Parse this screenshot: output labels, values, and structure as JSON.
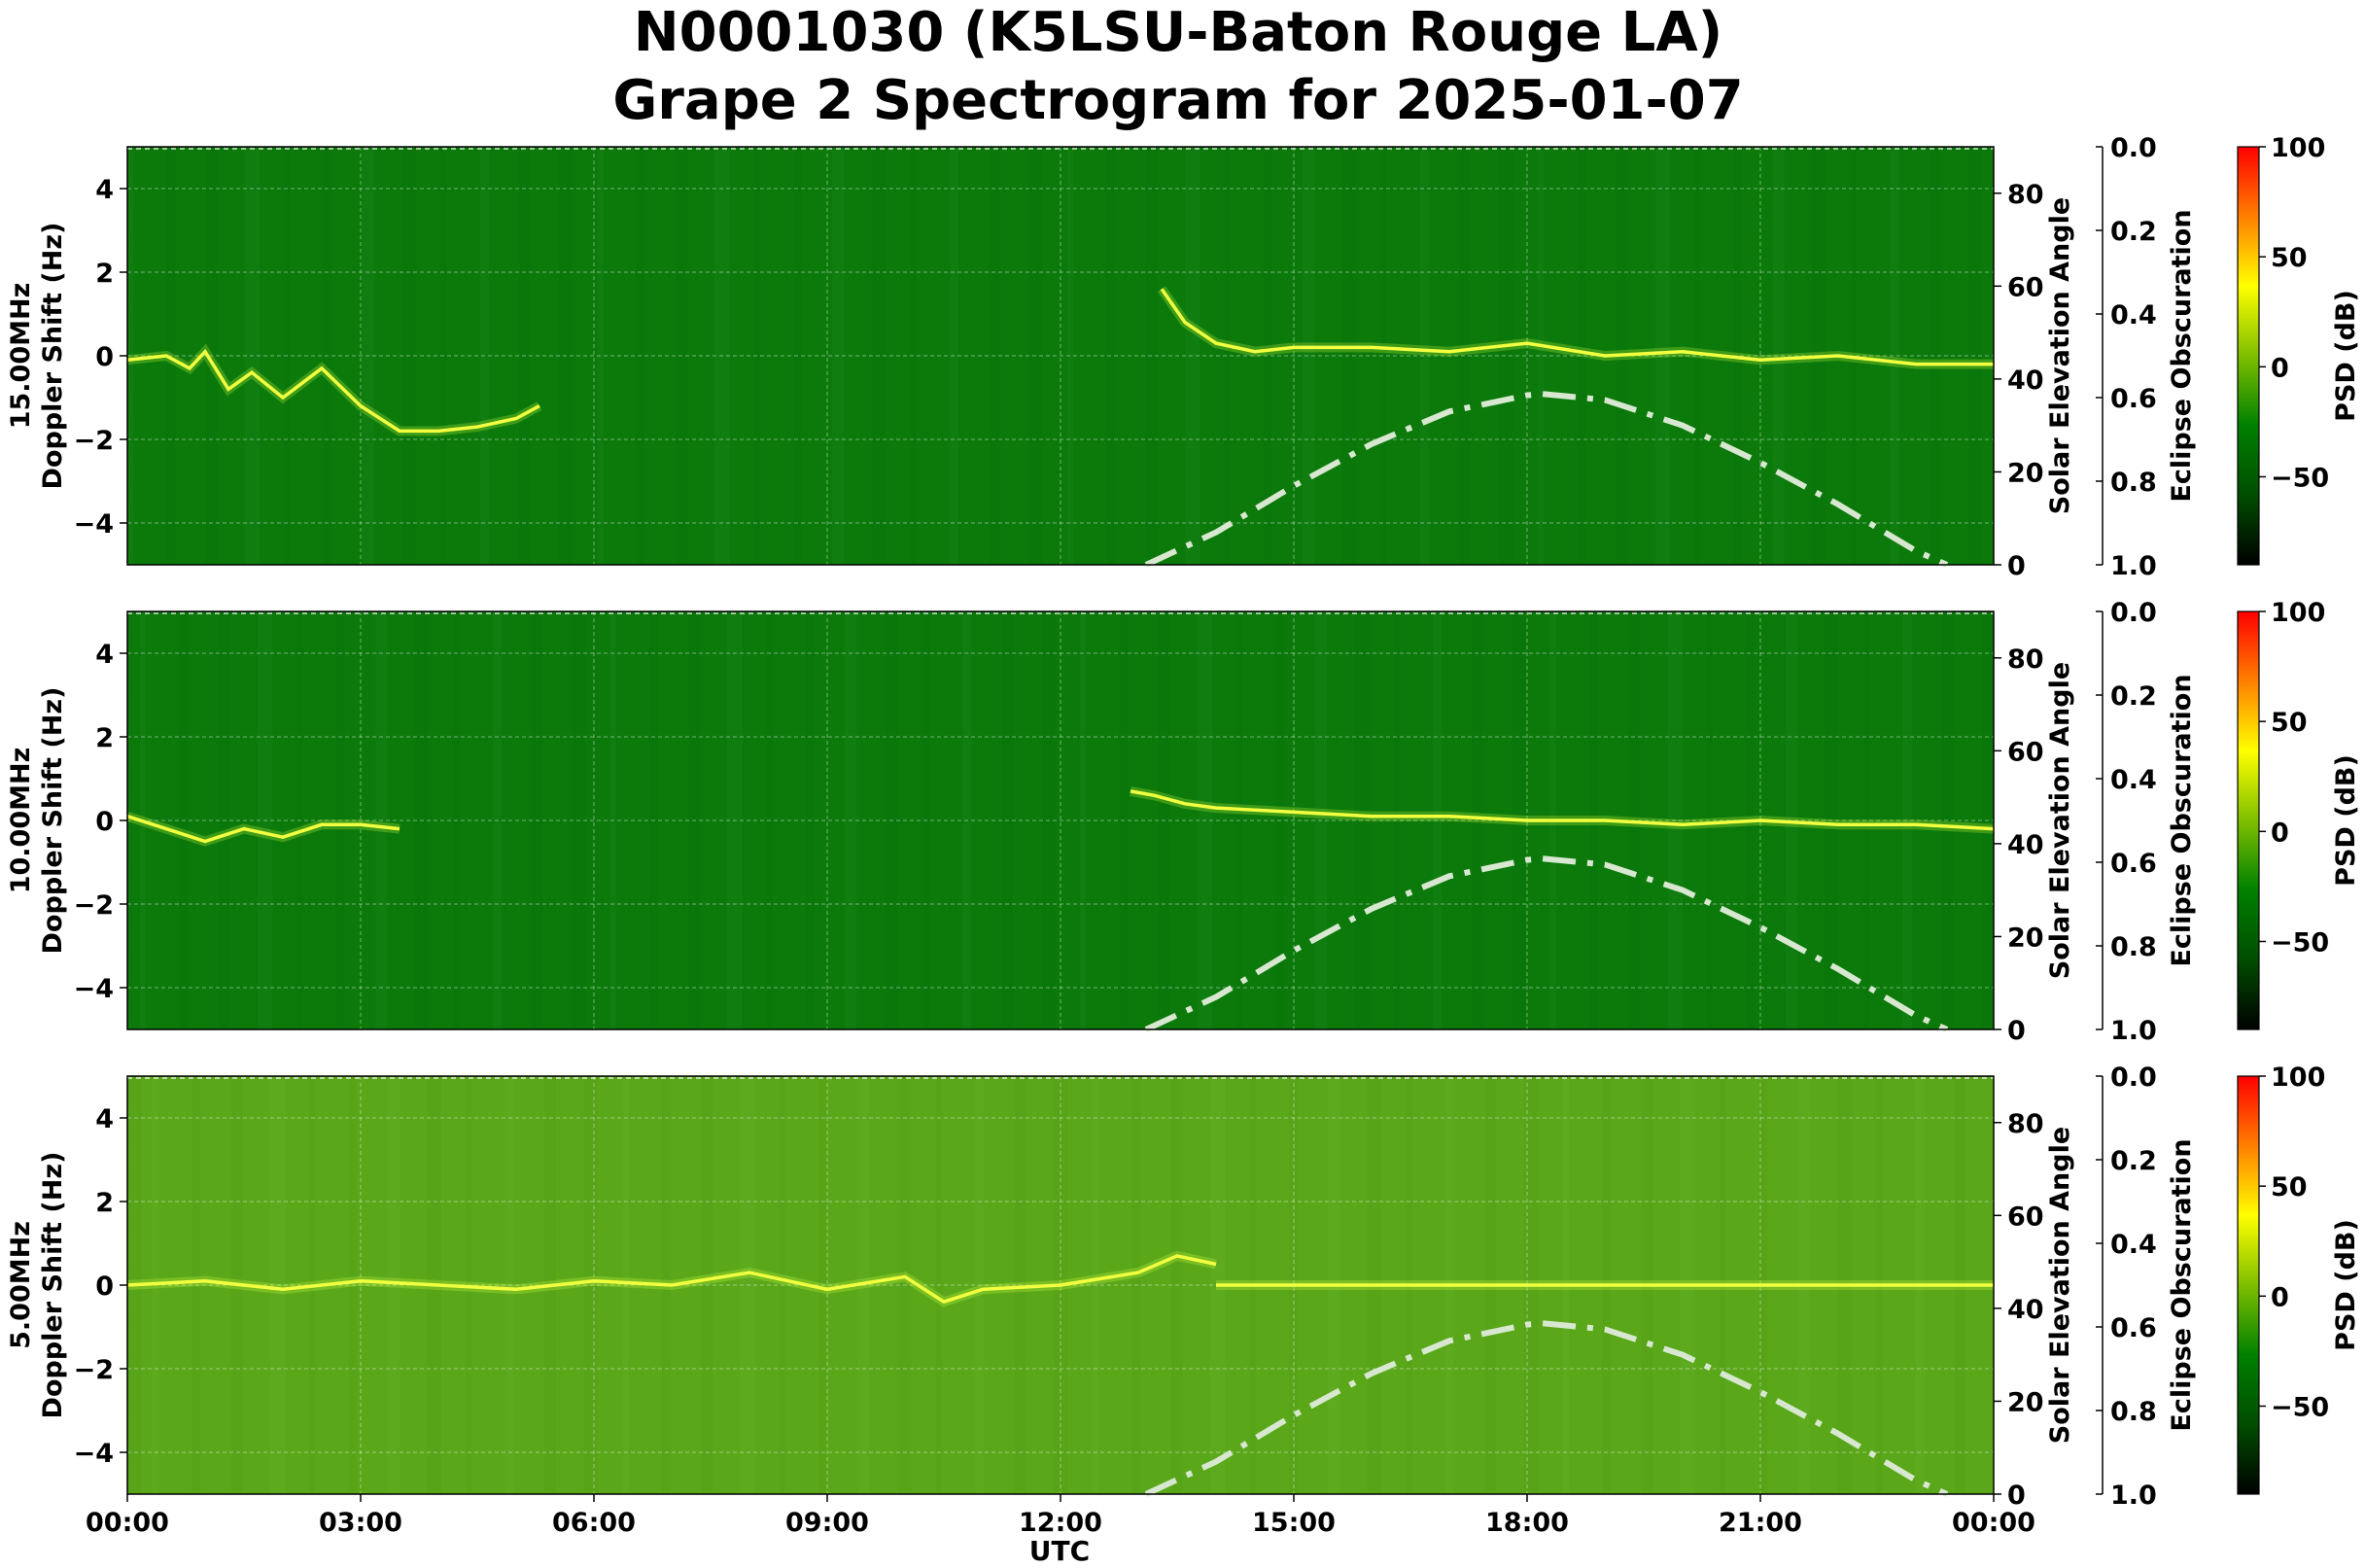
{
  "chart_data": {
    "type": "heatmap",
    "title_line1": "N0001030 (K5LSU-Baton Rouge LA)",
    "title_line2": "Grape 2 Spectrogram for 2025-01-07",
    "xlabel": "UTC",
    "x_ticks": [
      "00:00",
      "03:00",
      "06:00",
      "09:00",
      "12:00",
      "15:00",
      "18:00",
      "21:00",
      "00:00"
    ],
    "xlim_hours": [
      0,
      24
    ],
    "ylim": [
      -5,
      5
    ],
    "y_ticks": [
      4,
      2,
      0,
      -2,
      -4
    ],
    "elev_label": "Solar Elevation Angle",
    "elev_ylim": [
      0,
      90
    ],
    "elev_ticks": [
      0,
      20,
      40,
      60,
      80
    ],
    "eclipse_label": "Eclipse Obscuration",
    "eclipse_ticks": [
      "0.0",
      "0.2",
      "0.4",
      "0.6",
      "0.8",
      "1.0"
    ],
    "colorbar_label": "PSD (dB)",
    "colorbar_range": [
      -90,
      100
    ],
    "colorbar_ticks": [
      100,
      50,
      0,
      -50
    ],
    "colormap": [
      "#000000",
      "#004d00",
      "#008000",
      "#7fbf00",
      "#ffff00",
      "#ff7f00",
      "#ff0000"
    ],
    "grid": true,
    "solar_elevation_curve": {
      "x_hours": [
        13.1,
        14,
        15,
        16,
        17,
        18,
        18.2,
        19,
        20,
        21,
        22,
        23,
        23.4
      ],
      "elevation_deg": [
        0,
        7,
        17,
        26,
        33,
        36.5,
        36.8,
        35.5,
        30,
        22,
        13,
        3,
        0
      ],
      "color": "#d8e8d0"
    },
    "panels": [
      {
        "id": "15mhz",
        "ylabel_line1": "15.00MHz",
        "ylabel_line2": "Doppler Shift (Hz)",
        "background": "#0b7a0b",
        "carrier_trace_hours": [
          0,
          0.5,
          0.8,
          1,
          1.3,
          1.6,
          2,
          2.5,
          3,
          3.5,
          4,
          4.5,
          5,
          5.3
        ],
        "carrier_trace_hz": [
          -0.1,
          0,
          -0.3,
          0.1,
          -0.8,
          -0.4,
          -1,
          -0.3,
          -1.2,
          -1.8,
          -1.8,
          -1.7,
          -1.5,
          -1.2
        ],
        "day_trace_hours": [
          13.3,
          13.6,
          14,
          14.5,
          15,
          16,
          17,
          18,
          19,
          20,
          21,
          22,
          23,
          24
        ],
        "day_trace_hz": [
          1.6,
          0.8,
          0.3,
          0.1,
          0.2,
          0.2,
          0.1,
          0.3,
          0,
          0.1,
          -0.1,
          0,
          -0.2,
          -0.2
        ]
      },
      {
        "id": "10mhz",
        "ylabel_line1": "10.00MHz",
        "ylabel_line2": "Doppler Shift (Hz)",
        "background": "#0b7a0b",
        "carrier_trace_hours": [
          0,
          0.5,
          1,
          1.5,
          2,
          2.5,
          3,
          3.5
        ],
        "carrier_trace_hz": [
          0.1,
          -0.2,
          -0.5,
          -0.2,
          -0.4,
          -0.1,
          -0.1,
          -0.2
        ],
        "day_trace_hours": [
          12.9,
          13.2,
          13.6,
          14,
          15,
          16,
          17,
          18,
          19,
          20,
          21,
          22,
          23,
          24
        ],
        "day_trace_hz": [
          0.7,
          0.6,
          0.4,
          0.3,
          0.2,
          0.1,
          0.1,
          0,
          0,
          -0.1,
          0,
          -0.1,
          -0.1,
          -0.2
        ]
      },
      {
        "id": "5mhz",
        "ylabel_line1": "5.00MHz",
        "ylabel_line2": "Doppler Shift (Hz)",
        "background": "#5aa81a",
        "carrier_trace_hours": [
          0,
          1,
          2,
          3,
          4,
          5,
          6,
          7,
          8,
          9,
          10,
          10.5,
          11,
          12,
          13,
          13.5,
          14
        ],
        "carrier_trace_hz": [
          0,
          0.1,
          -0.1,
          0.1,
          0,
          -0.1,
          0.1,
          0,
          0.3,
          -0.1,
          0.2,
          -0.4,
          -0.1,
          0,
          0.3,
          0.7,
          0.5
        ],
        "day_trace_hours": [
          14,
          16,
          18,
          20,
          22,
          24
        ],
        "day_trace_hz": [
          0,
          0,
          0,
          0,
          0,
          0
        ]
      }
    ]
  }
}
